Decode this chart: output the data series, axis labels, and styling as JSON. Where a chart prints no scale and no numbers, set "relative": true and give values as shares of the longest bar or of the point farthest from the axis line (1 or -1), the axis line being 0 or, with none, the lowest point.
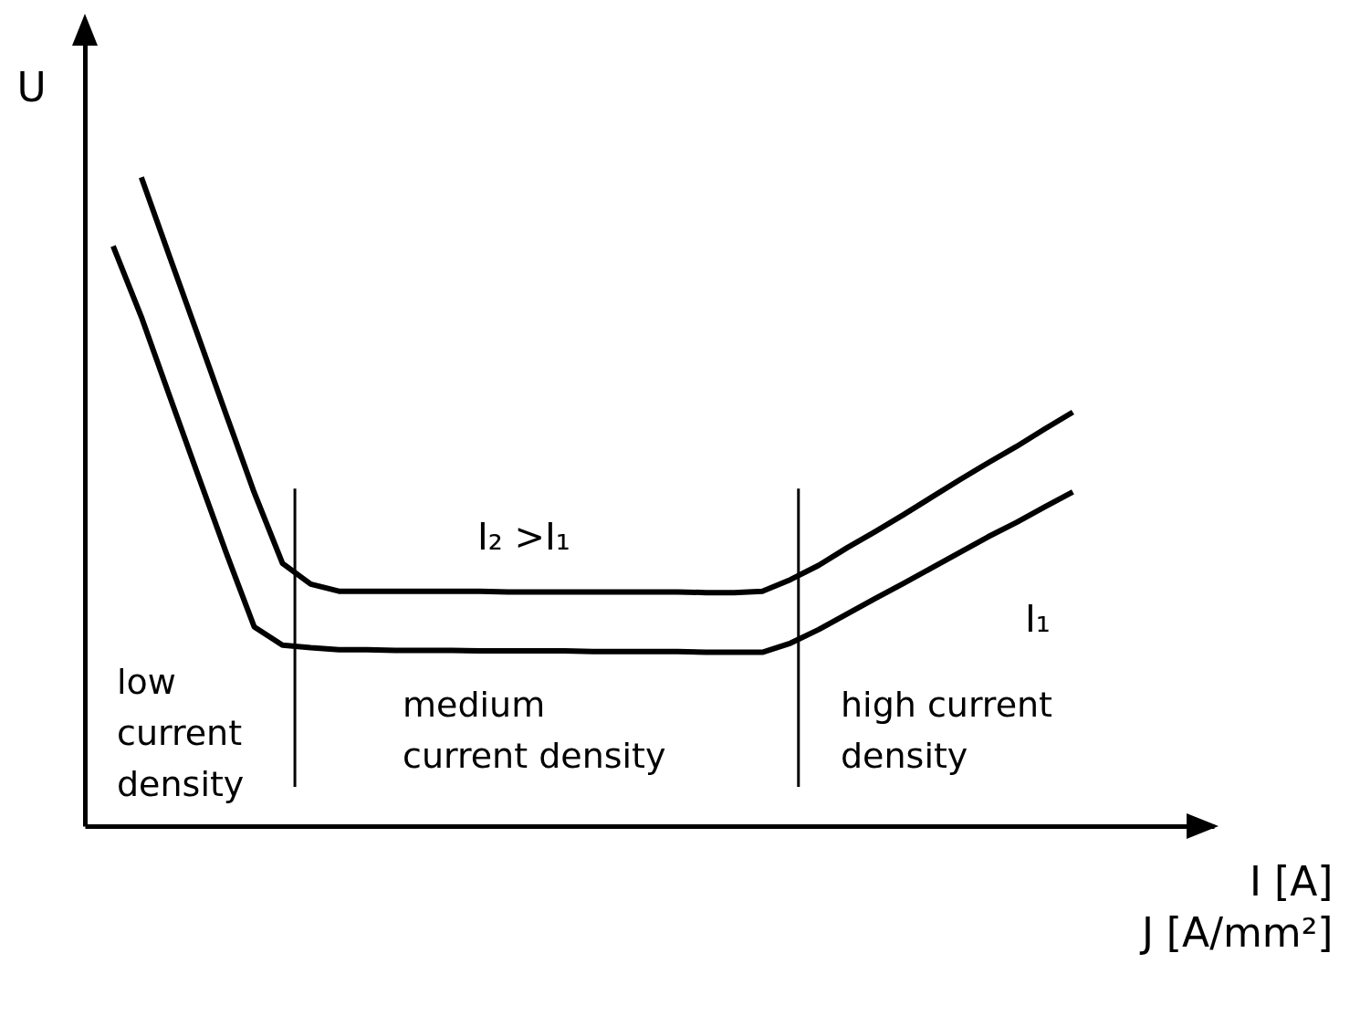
{
  "chart_data": {
    "type": "line",
    "relative": true,
    "xlabel": "I [A]\nJ [A/mm²]",
    "ylabel": "U",
    "marker": "none",
    "line_style": "solid",
    "categories": [
      null,
      null,
      null,
      null,
      null,
      null,
      null,
      null,
      null,
      null,
      null,
      null,
      null,
      null,
      null,
      null,
      null,
      null,
      null,
      null,
      null,
      null,
      null,
      null,
      null,
      null,
      null,
      null,
      null,
      null,
      null,
      null,
      null,
      null,
      null,
      null,
      null,
      null,
      null,
      null,
      null
    ],
    "series": [
      {
        "color": "#000000",
        "values": [
          null,
          null,
          1,
          0.878,
          0.757,
          0.635,
          0.514,
          0.405,
          0.373,
          0.362,
          0.362,
          0.362,
          0.362,
          0.362,
          0.362,
          0.361,
          0.361,
          0.361,
          0.361,
          0.361,
          0.361,
          0.361,
          0.36,
          0.36,
          0.362,
          0.38,
          0.402,
          0.429,
          0.454,
          0.48,
          0.507,
          0.534,
          0.56,
          0.585,
          0.612,
          0.638,
          null,
          null,
          null,
          null,
          null
        ]
      },
      {
        "color": "#000000",
        "values": [
          null,
          0.894,
          0.785,
          0.663,
          0.542,
          0.422,
          0.307,
          0.279,
          0.275,
          0.272,
          0.272,
          0.271,
          0.271,
          0.271,
          0.27,
          0.27,
          0.27,
          0.27,
          0.269,
          0.269,
          0.269,
          0.269,
          0.268,
          0.268,
          0.268,
          0.282,
          0.303,
          0.327,
          0.351,
          0.374,
          0.398,
          0.422,
          0.446,
          0.468,
          0.492,
          0.515,
          null,
          null,
          null,
          null,
          null
        ]
      }
    ],
    "annotations": [
      "I₂ >I₁",
      "I₁",
      "low\ncurrent\ndensity",
      "medium\ncurrent density",
      "high current\ndensity"
    ]
  }
}
